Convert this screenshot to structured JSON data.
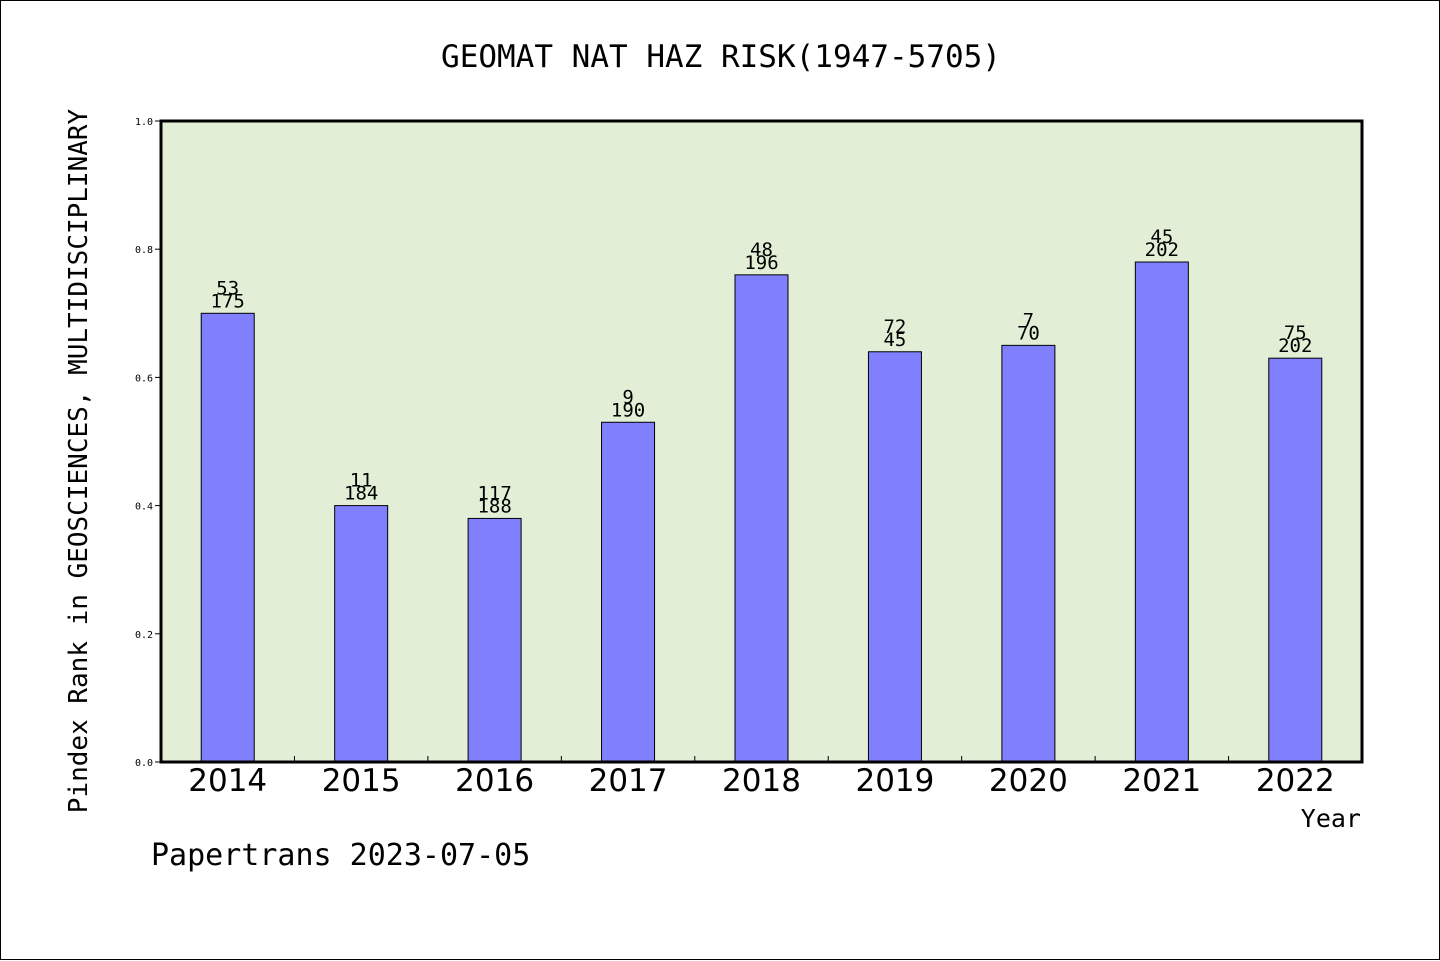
{
  "chart_data": {
    "type": "bar",
    "title": "GEOMAT NAT HAZ RISK(1947-5705)",
    "xlabel": "Year",
    "ylabel": "Pindex Rank in GEOSCIENCES, MULTIDISCIPLINARY",
    "ylim": [
      0.0,
      1.0
    ],
    "yticks": [
      "0.0",
      "0.2",
      "0.4",
      "0.6",
      "0.8",
      "1.0"
    ],
    "categories": [
      "2014",
      "2015",
      "2016",
      "2017",
      "2018",
      "2019",
      "2020",
      "2021",
      "2022"
    ],
    "values": [
      0.7,
      0.4,
      0.38,
      0.53,
      0.76,
      0.64,
      0.65,
      0.78,
      0.63
    ],
    "labels_top": [
      "53",
      "11",
      "117",
      "9",
      "48",
      "72",
      "7",
      "45",
      "75"
    ],
    "labels_bottom": [
      "175",
      "184",
      "188",
      "190",
      "196",
      "45",
      "70",
      "202",
      "202"
    ],
    "grid": false,
    "colors": {
      "bar": "#8080ff",
      "plot_bg": "#e2efd6"
    }
  },
  "footer": "Papertrans 2023-07-05"
}
